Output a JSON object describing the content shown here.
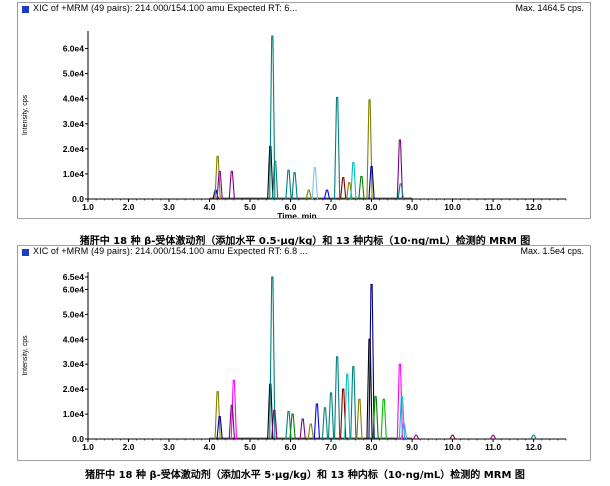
{
  "chart_data": [
    {
      "type": "line",
      "header": "XIC of +MRM (49 pairs): 214.000/154.100 amu Expected RT: 6...",
      "max_label": "Max. 1464.5 cps.",
      "ylabel": "Intensity, cps",
      "xlabel": "Time, min",
      "xlim": [
        1.0,
        12.8
      ],
      "ylim": [
        0,
        67000
      ],
      "x_ticks": [
        "1.0",
        "2.0",
        "3.0",
        "4.0",
        "5.0",
        "6.0",
        "7.0",
        "8.0",
        "9.0",
        "10.0",
        "11.0",
        "12.0"
      ],
      "y_ticks": [
        "0.0",
        "1.0e4",
        "2.0e4",
        "3.0e4",
        "4.0e4",
        "5.0e4",
        "6.0e4"
      ],
      "caption": "猪肝中 18 种 β-受体激动剂（添加水平 0.5·μg/kg）和 13 种内标（10·ng/mL）检测的 MRM 图",
      "peaks": [
        {
          "x": 4.15,
          "y": 3500,
          "color": "#000080"
        },
        {
          "x": 4.2,
          "y": 17000,
          "color": "#808000"
        },
        {
          "x": 4.25,
          "y": 11000,
          "color": "#800080"
        },
        {
          "x": 4.55,
          "y": 11000,
          "color": "#800080"
        },
        {
          "x": 5.5,
          "y": 21000,
          "color": "#000000"
        },
        {
          "x": 5.55,
          "y": 65000,
          "color": "#008080"
        },
        {
          "x": 5.62,
          "y": 15000,
          "color": "#008080"
        },
        {
          "x": 5.95,
          "y": 11500,
          "color": "#008080"
        },
        {
          "x": 6.1,
          "y": 10500,
          "color": "#008080"
        },
        {
          "x": 6.45,
          "y": 3500,
          "color": "#808000"
        },
        {
          "x": 6.6,
          "y": 12500,
          "color": "#80c0ff"
        },
        {
          "x": 6.9,
          "y": 3500,
          "color": "#0000ff"
        },
        {
          "x": 7.15,
          "y": 40500,
          "color": "#008080"
        },
        {
          "x": 7.3,
          "y": 8500,
          "color": "#800000"
        },
        {
          "x": 7.45,
          "y": 6500,
          "color": "#808000"
        },
        {
          "x": 7.55,
          "y": 14500,
          "color": "#00c0c0"
        },
        {
          "x": 7.75,
          "y": 9000,
          "color": "#008000"
        },
        {
          "x": 7.95,
          "y": 39500,
          "color": "#808000"
        },
        {
          "x": 8.0,
          "y": 13000,
          "color": "#000080"
        },
        {
          "x": 8.7,
          "y": 23500,
          "color": "#800080"
        },
        {
          "x": 8.72,
          "y": 6000,
          "color": "#008080"
        }
      ]
    },
    {
      "type": "line",
      "header": "XIC of +MRM (49 pairs): 214.000/154.100 amu Expected RT: 6.8 ...",
      "max_label": "Max. 1.5e4 cps.",
      "ylabel": "Intensity, cps",
      "xlabel": "",
      "xlim": [
        1.0,
        12.8
      ],
      "ylim": [
        0,
        67000
      ],
      "x_ticks": [
        "1.0",
        "2.0",
        "3.0",
        "4.0",
        "5.0",
        "6.0",
        "7.0",
        "8.0",
        "9.0",
        "10.0",
        "11.0",
        "12.0"
      ],
      "y_ticks": [
        "0.0",
        "1.0e4",
        "2.0e4",
        "3.0e4",
        "4.0e4",
        "5.0e4",
        "6.0e4",
        "6.5e4"
      ],
      "caption": "猪肝中 18 种 β-受体激动剂（添加水平 5·μg/kg）和 13 种内标（10·ng/mL）检测的 MRM 图",
      "peaks": [
        {
          "x": 4.2,
          "y": 19000,
          "color": "#808000"
        },
        {
          "x": 4.25,
          "y": 9000,
          "color": "#000080"
        },
        {
          "x": 4.6,
          "y": 23500,
          "color": "#ff00ff"
        },
        {
          "x": 4.55,
          "y": 13500,
          "color": "#800080"
        },
        {
          "x": 5.5,
          "y": 22000,
          "color": "#000000"
        },
        {
          "x": 5.55,
          "y": 65000,
          "color": "#008080"
        },
        {
          "x": 5.6,
          "y": 11500,
          "color": "#800080"
        },
        {
          "x": 5.95,
          "y": 11000,
          "color": "#008080"
        },
        {
          "x": 6.05,
          "y": 10000,
          "color": "#008000"
        },
        {
          "x": 6.3,
          "y": 8000,
          "color": "#800080"
        },
        {
          "x": 6.5,
          "y": 6000,
          "color": "#808000"
        },
        {
          "x": 6.65,
          "y": 14000,
          "color": "#0000ff"
        },
        {
          "x": 6.85,
          "y": 12500,
          "color": "#008080"
        },
        {
          "x": 7.0,
          "y": 18500,
          "color": "#008080"
        },
        {
          "x": 7.15,
          "y": 33000,
          "color": "#008080"
        },
        {
          "x": 7.3,
          "y": 20000,
          "color": "#800000"
        },
        {
          "x": 7.4,
          "y": 26000,
          "color": "#00c0c0"
        },
        {
          "x": 7.55,
          "y": 29000,
          "color": "#008080"
        },
        {
          "x": 7.7,
          "y": 16000,
          "color": "#808000"
        },
        {
          "x": 7.95,
          "y": 40000,
          "color": "#000000"
        },
        {
          "x": 8.0,
          "y": 62000,
          "color": "#000080"
        },
        {
          "x": 8.1,
          "y": 17000,
          "color": "#008000"
        },
        {
          "x": 8.3,
          "y": 16000,
          "color": "#00c000"
        },
        {
          "x": 8.7,
          "y": 30000,
          "color": "#ff00ff"
        },
        {
          "x": 8.75,
          "y": 17000,
          "color": "#00c0c0"
        },
        {
          "x": 8.8,
          "y": 6000,
          "color": "#8080ff"
        },
        {
          "x": 9.1,
          "y": 1500,
          "color": "#800080"
        },
        {
          "x": 10.0,
          "y": 1500,
          "color": "#800000"
        },
        {
          "x": 11.0,
          "y": 1500,
          "color": "#800080"
        },
        {
          "x": 12.0,
          "y": 1500,
          "color": "#008080"
        }
      ]
    }
  ]
}
